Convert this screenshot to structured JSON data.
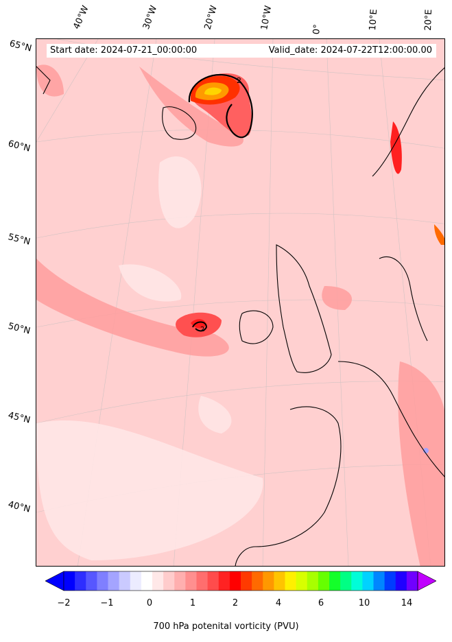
{
  "longitude_labels": [
    "40°W",
    "30°W",
    "20°W",
    "10°W",
    "0°",
    "10°E",
    "20°E"
  ],
  "latitude_labels": [
    "65°N",
    "60°N",
    "55°N",
    "50°N",
    "45°N",
    "40°N"
  ],
  "header": {
    "start": "Start date: 2024-07-21_00:00:00",
    "valid": "Valid_date: 2024-07-22T12:00:00.00"
  },
  "contour_labels": [
    "2",
    "2"
  ],
  "colorbar": {
    "ticks": [
      "−2",
      "−1",
      "0",
      "1",
      "2",
      "4",
      "6",
      "10",
      "14"
    ],
    "label": "700 hPa potenital vorticity (PVU)",
    "colors": [
      "#0000ff",
      "#2e2eff",
      "#5757ff",
      "#7f7fff",
      "#a4a4ff",
      "#cacaff",
      "#ececff",
      "#ffffff",
      "#ffe8e8",
      "#ffcccc",
      "#ffafaf",
      "#ff8f8f",
      "#ff6e6e",
      "#ff4c4c",
      "#ff2222",
      "#ff0000",
      "#ff3a00",
      "#ff6a00",
      "#ff9800",
      "#ffc400",
      "#fff000",
      "#d8ff00",
      "#a8ff00",
      "#66ff00",
      "#14ff2a",
      "#00ff84",
      "#00fdd8",
      "#00d2ff",
      "#0086ff",
      "#003cff",
      "#2000ff",
      "#7000ff"
    ],
    "extend_min_color": "#0000ff",
    "extend_max_color": "#c000ff"
  }
}
